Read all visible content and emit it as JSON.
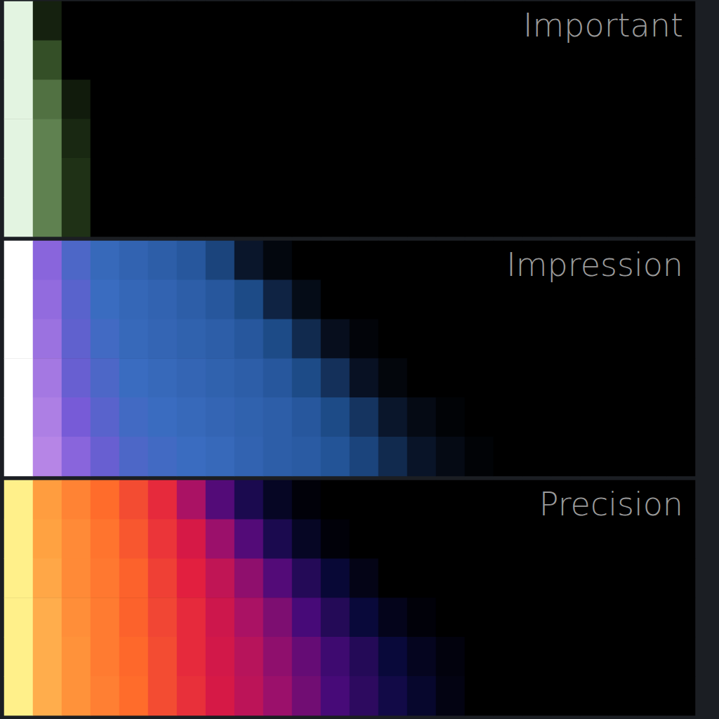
{
  "chart_data": [
    {
      "type": "heatmap",
      "title": "Important",
      "tick_labels": false,
      "zlim": [
        0,
        1
      ],
      "colors": [
        "#000000",
        "#2f4a22",
        "#8fb87e",
        "#f2fff2"
      ],
      "cells": [
        [
          0.95,
          0.15,
          0,
          0,
          0,
          0,
          0,
          0,
          0,
          0,
          0,
          0,
          0,
          0,
          0,
          0,
          0,
          0,
          0,
          0,
          0,
          0,
          0,
          0
        ],
        [
          0.95,
          0.35,
          0,
          0,
          0,
          0,
          0,
          0,
          0,
          0,
          0,
          0,
          0,
          0,
          0,
          0,
          0,
          0,
          0,
          0,
          0,
          0,
          0,
          0
        ],
        [
          0.95,
          0.45,
          0.12,
          0,
          0,
          0,
          0,
          0,
          0,
          0,
          0,
          0,
          0,
          0,
          0,
          0,
          0,
          0,
          0,
          0,
          0,
          0,
          0,
          0
        ],
        [
          0.95,
          0.5,
          0.18,
          0,
          0,
          0,
          0,
          0,
          0,
          0,
          0,
          0,
          0,
          0,
          0,
          0,
          0,
          0,
          0,
          0,
          0,
          0,
          0,
          0
        ],
        [
          0.95,
          0.5,
          0.22,
          0,
          0,
          0,
          0,
          0,
          0,
          0,
          0,
          0,
          0,
          0,
          0,
          0,
          0,
          0,
          0,
          0,
          0,
          0,
          0,
          0
        ],
        [
          0.95,
          0.5,
          0.22,
          0,
          0,
          0,
          0,
          0,
          0,
          0,
          0,
          0,
          0,
          0,
          0,
          0,
          0,
          0,
          0,
          0,
          0,
          0,
          0,
          0
        ]
      ]
    },
    {
      "type": "heatmap",
      "title": "Impression",
      "tick_labels": false,
      "zlim": [
        0,
        1
      ],
      "colors": [
        "#000000",
        "#0b1830",
        "#1f4f8f",
        "#3a6cc0",
        "#7a5ad8",
        "#c590ea",
        "#ffffff"
      ],
      "cells": [
        [
          1,
          0.7,
          0.55,
          0.48,
          0.45,
          0.42,
          0.38,
          0.3,
          0.15,
          0.05,
          0,
          0,
          0,
          0,
          0,
          0,
          0,
          0,
          0,
          0,
          0,
          0,
          0,
          0
        ],
        [
          1,
          0.72,
          0.58,
          0.5,
          0.47,
          0.45,
          0.42,
          0.38,
          0.32,
          0.2,
          0.08,
          0,
          0,
          0,
          0,
          0,
          0,
          0,
          0,
          0,
          0,
          0,
          0,
          0
        ],
        [
          1,
          0.74,
          0.6,
          0.52,
          0.48,
          0.46,
          0.44,
          0.42,
          0.38,
          0.32,
          0.22,
          0.1,
          0.03,
          0,
          0,
          0,
          0,
          0,
          0,
          0,
          0,
          0,
          0,
          0
        ],
        [
          1,
          0.76,
          0.62,
          0.55,
          0.5,
          0.48,
          0.46,
          0.44,
          0.42,
          0.38,
          0.32,
          0.24,
          0.12,
          0.04,
          0,
          0,
          0,
          0,
          0,
          0,
          0,
          0,
          0,
          0
        ],
        [
          1,
          0.78,
          0.66,
          0.58,
          0.52,
          0.5,
          0.48,
          0.46,
          0.44,
          0.42,
          0.38,
          0.32,
          0.25,
          0.15,
          0.07,
          0.02,
          0,
          0,
          0,
          0,
          0,
          0,
          0,
          0
        ],
        [
          1,
          0.8,
          0.7,
          0.62,
          0.55,
          0.52,
          0.5,
          0.48,
          0.45,
          0.42,
          0.4,
          0.36,
          0.3,
          0.22,
          0.14,
          0.07,
          0.02,
          0,
          0,
          0,
          0,
          0,
          0,
          0
        ]
      ]
    },
    {
      "type": "heatmap",
      "title": "Precision",
      "tick_labels": false,
      "zlim": [
        0,
        1
      ],
      "colors": [
        "#000000",
        "#0a0a40",
        "#4a0a7a",
        "#a0106a",
        "#e01a40",
        "#ff6a2a",
        "#ffa040",
        "#fff08a"
      ],
      "cells": [
        [
          1,
          0.85,
          0.78,
          0.72,
          0.66,
          0.6,
          0.45,
          0.3,
          0.18,
          0.08,
          0.02,
          0,
          0,
          0,
          0,
          0,
          0,
          0,
          0,
          0,
          0,
          0,
          0,
          0
        ],
        [
          1,
          0.86,
          0.8,
          0.74,
          0.68,
          0.62,
          0.55,
          0.42,
          0.3,
          0.18,
          0.08,
          0.02,
          0,
          0,
          0,
          0,
          0,
          0,
          0,
          0,
          0,
          0,
          0,
          0
        ],
        [
          1,
          0.87,
          0.8,
          0.75,
          0.7,
          0.64,
          0.58,
          0.5,
          0.4,
          0.3,
          0.2,
          0.12,
          0.05,
          0,
          0,
          0,
          0,
          0,
          0,
          0,
          0,
          0,
          0,
          0
        ],
        [
          1,
          0.88,
          0.81,
          0.76,
          0.7,
          0.65,
          0.6,
          0.53,
          0.45,
          0.37,
          0.28,
          0.2,
          0.13,
          0.06,
          0.02,
          0,
          0,
          0,
          0,
          0,
          0,
          0,
          0,
          0
        ],
        [
          1,
          0.88,
          0.82,
          0.76,
          0.71,
          0.66,
          0.6,
          0.54,
          0.48,
          0.4,
          0.33,
          0.26,
          0.2,
          0.13,
          0.07,
          0.03,
          0,
          0,
          0,
          0,
          0,
          0,
          0,
          0
        ],
        [
          1,
          0.88,
          0.82,
          0.77,
          0.72,
          0.66,
          0.61,
          0.55,
          0.49,
          0.42,
          0.35,
          0.28,
          0.22,
          0.16,
          0.1,
          0.04,
          0,
          0,
          0,
          0,
          0,
          0,
          0,
          0
        ]
      ]
    }
  ]
}
